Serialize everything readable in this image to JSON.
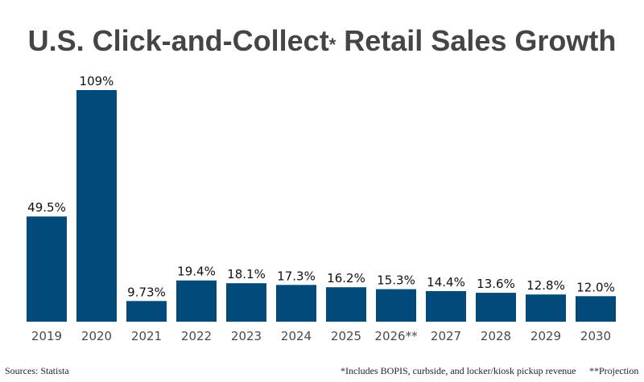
{
  "chart_data": {
    "type": "bar",
    "title": "U.S. Click-and-Collect",
    "title_mark": "*",
    "title_rest": " Retail Sales Growth",
    "categories": [
      "2019",
      "2020",
      "2021",
      "2022",
      "2023",
      "2024",
      "2025",
      "2026**",
      "2027",
      "2028",
      "2029",
      "2030"
    ],
    "values": [
      49.5,
      109,
      9.73,
      19.4,
      18.1,
      17.3,
      16.2,
      15.3,
      14.4,
      13.6,
      12.8,
      12.0
    ],
    "data_labels": [
      "49.5%",
      "109%",
      "9.73%",
      "19.4%",
      "18.1%",
      "17.3%",
      "16.2%",
      "15.3%",
      "14.4%",
      "13.6%",
      "12.8%",
      "12.0%"
    ],
    "xlabel": "",
    "ylabel": "",
    "ylim": [
      0,
      115
    ],
    "grid": false,
    "bar_color": "#014a79"
  },
  "footer": {
    "source": "Sources: Statista",
    "note1": "*Includes BOPIS, curbside, and locker/kiosk pickup revenue",
    "note2": "**Projection"
  }
}
